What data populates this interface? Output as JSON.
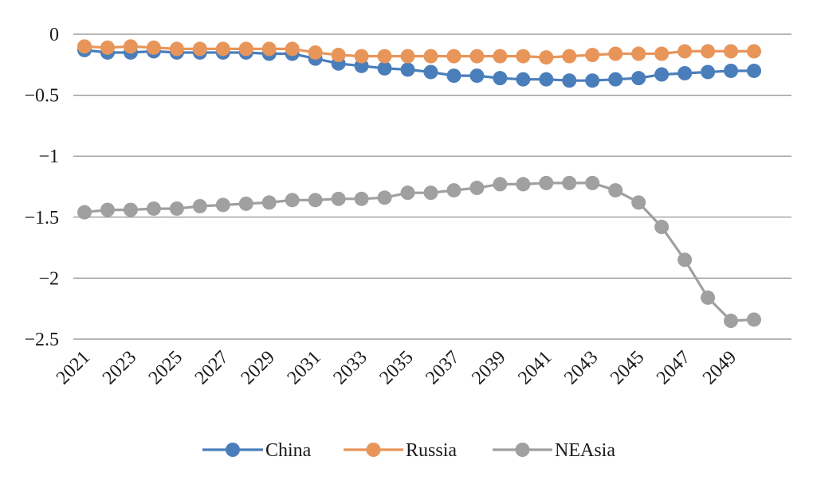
{
  "chart_data": {
    "type": "line",
    "x": [
      2021,
      2022,
      2023,
      2024,
      2025,
      2026,
      2027,
      2028,
      2029,
      2030,
      2031,
      2032,
      2033,
      2034,
      2035,
      2036,
      2037,
      2038,
      2039,
      2040,
      2041,
      2042,
      2043,
      2044,
      2045,
      2046,
      2047,
      2048,
      2049,
      2050
    ],
    "xtick_labels": [
      "2021",
      "2023",
      "2025",
      "2027",
      "2029",
      "2031",
      "2033",
      "2035",
      "2037",
      "2039",
      "2041",
      "2043",
      "2045",
      "2047",
      "2049"
    ],
    "ylim": [
      -2.5,
      0
    ],
    "yticks": [
      0,
      -0.5,
      -1,
      -1.5,
      -2,
      -2.5
    ],
    "ytick_labels": [
      "0",
      "−0.5",
      "−1",
      "−1.5",
      "−2",
      "−2.5"
    ],
    "grid": true,
    "legend_position": "bottom",
    "series": [
      {
        "name": "China",
        "color": "#4a7ebb",
        "values": [
          -0.13,
          -0.15,
          -0.15,
          -0.14,
          -0.15,
          -0.15,
          -0.15,
          -0.15,
          -0.16,
          -0.16,
          -0.2,
          -0.24,
          -0.26,
          -0.28,
          -0.29,
          -0.31,
          -0.34,
          -0.34,
          -0.36,
          -0.37,
          -0.37,
          -0.38,
          -0.38,
          -0.37,
          -0.36,
          -0.33,
          -0.32,
          -0.31,
          -0.3,
          -0.3
        ]
      },
      {
        "name": "Russia",
        "color": "#e8955a",
        "values": [
          -0.1,
          -0.11,
          -0.1,
          -0.11,
          -0.12,
          -0.12,
          -0.12,
          -0.12,
          -0.12,
          -0.12,
          -0.15,
          -0.17,
          -0.18,
          -0.18,
          -0.18,
          -0.18,
          -0.18,
          -0.18,
          -0.18,
          -0.18,
          -0.19,
          -0.18,
          -0.17,
          -0.16,
          -0.16,
          -0.16,
          -0.14,
          -0.14,
          -0.14,
          -0.14
        ]
      },
      {
        "name": "NEAsia",
        "color": "#a0a0a0",
        "values": [
          -1.46,
          -1.44,
          -1.44,
          -1.43,
          -1.43,
          -1.41,
          -1.4,
          -1.39,
          -1.38,
          -1.36,
          -1.36,
          -1.35,
          -1.35,
          -1.34,
          -1.3,
          -1.3,
          -1.28,
          -1.26,
          -1.23,
          -1.23,
          -1.22,
          -1.22,
          -1.22,
          -1.28,
          -1.38,
          -1.58,
          -1.85,
          -2.16,
          -2.35,
          -2.34
        ]
      }
    ]
  }
}
